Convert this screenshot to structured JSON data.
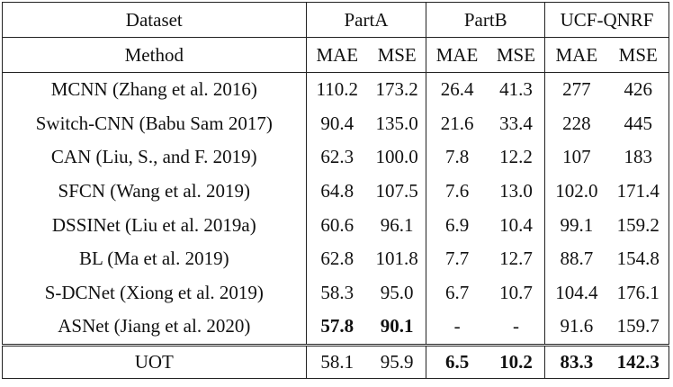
{
  "table": {
    "header": {
      "groups": [
        "Dataset",
        "PartA",
        "PartB",
        "UCF-QNRF"
      ],
      "method": "Method",
      "metrics": [
        "MAE",
        "MSE",
        "MAE",
        "MSE",
        "MAE",
        "MSE"
      ]
    },
    "rows": [
      {
        "method": "MCNN (Zhang et al. 2016)",
        "cells": [
          {
            "text": "110.2"
          },
          {
            "text": "173.2"
          },
          {
            "text": "26.4"
          },
          {
            "text": "41.3"
          },
          {
            "text": "277"
          },
          {
            "text": "426"
          }
        ]
      },
      {
        "method": "Switch-CNN (Babu Sam 2017)",
        "cells": [
          {
            "text": "90.4"
          },
          {
            "text": "135.0"
          },
          {
            "text": "21.6"
          },
          {
            "text": "33.4"
          },
          {
            "text": "228"
          },
          {
            "text": "445"
          }
        ]
      },
      {
        "method": "CAN (Liu, S., and F. 2019)",
        "cells": [
          {
            "text": "62.3"
          },
          {
            "text": "100.0"
          },
          {
            "text": "7.8"
          },
          {
            "text": "12.2"
          },
          {
            "text": "107"
          },
          {
            "text": "183"
          }
        ]
      },
      {
        "method": "SFCN (Wang et al. 2019)",
        "cells": [
          {
            "text": "64.8"
          },
          {
            "text": "107.5"
          },
          {
            "text": "7.6"
          },
          {
            "text": "13.0"
          },
          {
            "text": "102.0"
          },
          {
            "text": "171.4"
          }
        ]
      },
      {
        "method": "DSSINet (Liu et al. 2019a)",
        "cells": [
          {
            "text": "60.6"
          },
          {
            "text": "96.1"
          },
          {
            "text": "6.9"
          },
          {
            "text": "10.4"
          },
          {
            "text": "99.1"
          },
          {
            "text": "159.2"
          }
        ]
      },
      {
        "method": "BL (Ma et al. 2019)",
        "cells": [
          {
            "text": "62.8"
          },
          {
            "text": "101.8"
          },
          {
            "text": "7.7"
          },
          {
            "text": "12.7"
          },
          {
            "text": "88.7"
          },
          {
            "text": "154.8"
          }
        ]
      },
      {
        "method": "S-DCNet (Xiong et al. 2019)",
        "cells": [
          {
            "text": "58.3"
          },
          {
            "text": "95.0"
          },
          {
            "text": "6.7"
          },
          {
            "text": "10.7"
          },
          {
            "text": "104.4"
          },
          {
            "text": "176.1"
          }
        ]
      },
      {
        "method": "ASNet (Jiang et al. 2020)",
        "cells": [
          {
            "text": "57.8",
            "bold": true
          },
          {
            "text": "90.1",
            "bold": true
          },
          {
            "text": "-"
          },
          {
            "text": "-"
          },
          {
            "text": "91.6"
          },
          {
            "text": "159.7"
          }
        ]
      },
      {
        "method": "UOT",
        "cells": [
          {
            "text": "58.1"
          },
          {
            "text": "95.9"
          },
          {
            "text": "6.5",
            "bold": true
          },
          {
            "text": "10.2",
            "bold": true
          },
          {
            "text": "83.3",
            "bold": true
          },
          {
            "text": "142.3",
            "bold": true
          }
        ]
      }
    ]
  }
}
